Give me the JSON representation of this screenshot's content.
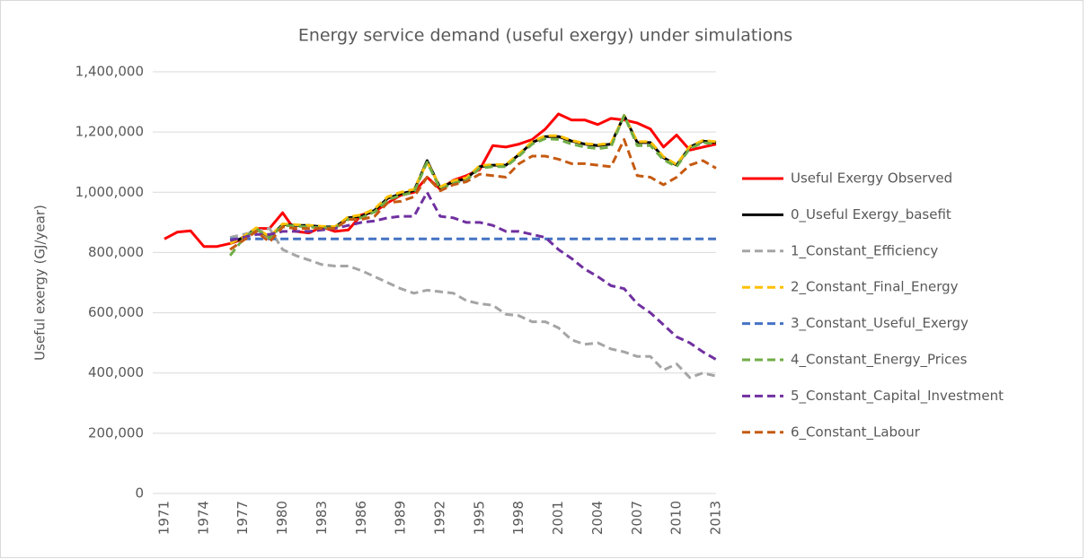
{
  "chart_data": {
    "type": "line",
    "title": "Energy service demand (useful exergy) under simulations",
    "y_label": "Useful exergy (GJ/year)",
    "categories": [
      "1971",
      null,
      null,
      "1974",
      null,
      null,
      "1977",
      null,
      null,
      "1980",
      null,
      null,
      "1983",
      null,
      null,
      "1986",
      null,
      null,
      "1989",
      null,
      null,
      "1992",
      null,
      null,
      "1995",
      null,
      null,
      "1998",
      null,
      null,
      "2001",
      null,
      null,
      "2004",
      null,
      null,
      "2007",
      null,
      null,
      "2010",
      null,
      null,
      "2013"
    ],
    "ylim": [
      0,
      1400000
    ],
    "yticks": [
      0,
      {
        "value": 200000,
        "label": "200,000"
      },
      {
        "value": 400000,
        "label": "400,000"
      },
      {
        "value": 600000,
        "label": "600,000"
      },
      {
        "value": 800000,
        "label": "800,000"
      },
      {
        "value": 1000000,
        "label": "1,000,000"
      },
      {
        "value": 1200000,
        "label": "1,200,000"
      },
      {
        "value": 1400000,
        "label": "1,400,000"
      }
    ],
    "grid": true,
    "legend": "right",
    "series": [
      {
        "name": "Useful Exergy Observed",
        "color": "#ff0000",
        "style": "solid",
        "values": [
          845000,
          868000,
          872000,
          820000,
          820000,
          830000,
          845000,
          880000,
          880000,
          932000,
          870000,
          865000,
          885000,
          870000,
          875000,
          925000,
          935000,
          965000,
          990000,
          1000000,
          1050000,
          1010000,
          1040000,
          1055000,
          1075000,
          1155000,
          1150000,
          1160000,
          1175000,
          1210000,
          1260000,
          1240000,
          1240000,
          1225000,
          1245000,
          1240000,
          1230000,
          1210000,
          1150000,
          1190000,
          1140000,
          1150000,
          1160000
        ]
      },
      {
        "name": "0_Useful Exergy_basefit",
        "color": "#000000",
        "style": "solid",
        "values": [
          null,
          null,
          null,
          null,
          null,
          830000,
          850000,
          880000,
          850000,
          893000,
          890000,
          890000,
          885000,
          885000,
          915000,
          920000,
          940000,
          980000,
          995000,
          1005000,
          1105000,
          1015000,
          1035000,
          1045000,
          1085000,
          1090000,
          1090000,
          1125000,
          1165000,
          1185000,
          1185000,
          1170000,
          1160000,
          1155000,
          1160000,
          1255000,
          1165000,
          1165000,
          1115000,
          1090000,
          1150000,
          1170000,
          1165000
        ]
      },
      {
        "name": "1_Constant_Efficiency",
        "color": "#a5a5a5",
        "style": "dashed",
        "values": [
          null,
          null,
          null,
          null,
          null,
          850000,
          860000,
          870000,
          880000,
          810000,
          790000,
          775000,
          760000,
          755000,
          755000,
          740000,
          720000,
          700000,
          680000,
          665000,
          675000,
          670000,
          665000,
          640000,
          630000,
          625000,
          595000,
          590000,
          570000,
          570000,
          550000,
          510000,
          495000,
          500000,
          480000,
          470000,
          455000,
          455000,
          410000,
          430000,
          385000,
          400000,
          390000
        ]
      },
      {
        "name": "2_Constant_Final_Energy",
        "color": "#ffc000",
        "style": "dashed",
        "values": [
          null,
          null,
          null,
          null,
          null,
          830000,
          852000,
          882000,
          852000,
          895000,
          892000,
          890000,
          887000,
          886000,
          918000,
          925000,
          945000,
          985000,
          1000000,
          1010000,
          1100000,
          1018000,
          1038000,
          1048000,
          1088000,
          1092000,
          1092000,
          1128000,
          1168000,
          1188000,
          1188000,
          1172000,
          1162000,
          1158000,
          1162000,
          1255000,
          1168000,
          1168000,
          1118000,
          1092000,
          1152000,
          1172000,
          1168000
        ]
      },
      {
        "name": "3_Constant_Useful_Exergy",
        "color": "#4472c4",
        "style": "dashed",
        "values": [
          null,
          null,
          null,
          null,
          null,
          845000,
          845000,
          845000,
          845000,
          845000,
          845000,
          845000,
          845000,
          845000,
          845000,
          845000,
          845000,
          845000,
          845000,
          845000,
          845000,
          845000,
          845000,
          845000,
          845000,
          845000,
          845000,
          845000,
          845000,
          845000,
          845000,
          845000,
          845000,
          845000,
          845000,
          845000,
          845000,
          845000,
          845000,
          845000,
          845000,
          845000,
          845000
        ]
      },
      {
        "name": "4_Constant_Energy_Prices",
        "color": "#70ad47",
        "style": "dashed",
        "values": [
          null,
          null,
          null,
          null,
          null,
          790000,
          845000,
          878000,
          848000,
          890000,
          888000,
          885000,
          882000,
          882000,
          910000,
          915000,
          935000,
          975000,
          990000,
          1000000,
          1100000,
          1010000,
          1030000,
          1040000,
          1080000,
          1085000,
          1085000,
          1120000,
          1160000,
          1178000,
          1175000,
          1160000,
          1150000,
          1145000,
          1150000,
          1255000,
          1155000,
          1155000,
          1108000,
          1085000,
          1145000,
          1165000,
          1160000
        ]
      },
      {
        "name": "5_Constant_Capital_Investment",
        "color": "#7030a0",
        "style": "dashed",
        "values": [
          null,
          null,
          null,
          null,
          null,
          840000,
          850000,
          860000,
          860000,
          870000,
          870000,
          870000,
          875000,
          880000,
          890000,
          900000,
          905000,
          915000,
          920000,
          920000,
          1000000,
          920000,
          915000,
          900000,
          900000,
          890000,
          870000,
          870000,
          860000,
          850000,
          810000,
          780000,
          745000,
          720000,
          690000,
          680000,
          630000,
          600000,
          560000,
          520000,
          500000,
          470000,
          445000
        ]
      },
      {
        "name": "6_Constant_Labour",
        "color": "#c55a11",
        "style": "dashed",
        "values": [
          null,
          null,
          null,
          null,
          null,
          810000,
          840000,
          870000,
          835000,
          885000,
          880000,
          880000,
          880000,
          880000,
          910000,
          910000,
          920000,
          965000,
          970000,
          985000,
          1050000,
          1005000,
          1025000,
          1035000,
          1060000,
          1055000,
          1050000,
          1095000,
          1120000,
          1120000,
          1110000,
          1095000,
          1095000,
          1090000,
          1085000,
          1175000,
          1055000,
          1050000,
          1025000,
          1050000,
          1090000,
          1105000,
          1080000
        ]
      }
    ]
  }
}
